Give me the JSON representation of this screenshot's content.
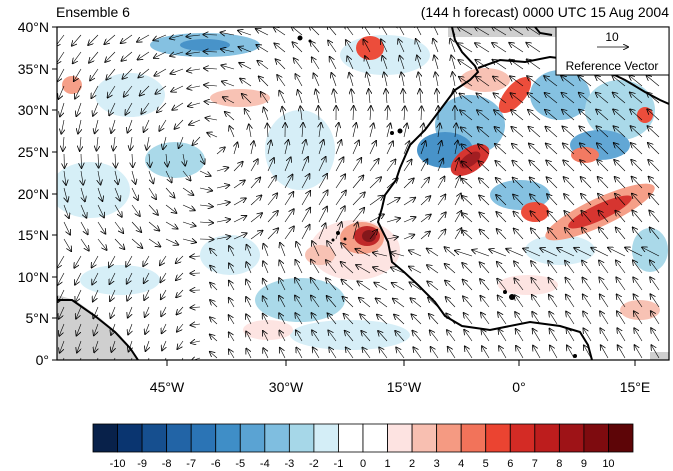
{
  "header": {
    "left_title": "Ensemble 6",
    "right_title": "(144 h forecast) 0000 UTC 15 Aug 2004"
  },
  "reference_vector": {
    "magnitude_label": "10",
    "label": "Reference Vector"
  },
  "lat_labels": [
    "40°N",
    "35°N",
    "30°N",
    "25°N",
    "20°N",
    "15°N",
    "10°N",
    "5°N",
    "0°"
  ],
  "lon_labels": [
    "45°W",
    "30°W",
    "15°W",
    "0°",
    "15°E"
  ],
  "colorbar": {
    "labels": [
      "-10",
      "-9",
      "-8",
      "-7",
      "-6",
      "-5",
      "-4",
      "-3",
      "-2",
      "-1",
      "0",
      "1",
      "2",
      "3",
      "4",
      "5",
      "6",
      "7",
      "8",
      "9",
      "10"
    ],
    "colors": [
      "#08214a",
      "#0a3570",
      "#164f8f",
      "#2264a6",
      "#2b74b5",
      "#3f8ec7",
      "#5aa3d3",
      "#7fbee0",
      "#a6d7e8",
      "#d4eef7",
      "#ffffff",
      "#ffffff",
      "#fde3e1",
      "#f8bfb1",
      "#f59a82",
      "#f2735a",
      "#eb4431",
      "#d42b25",
      "#bd1d1d",
      "#9e1317",
      "#7e0b0f",
      "#5d0507"
    ]
  },
  "map": {
    "ocean_color": "#ffffff",
    "masked_color": "#cfcfcf",
    "coast_color": "#000000"
  }
}
